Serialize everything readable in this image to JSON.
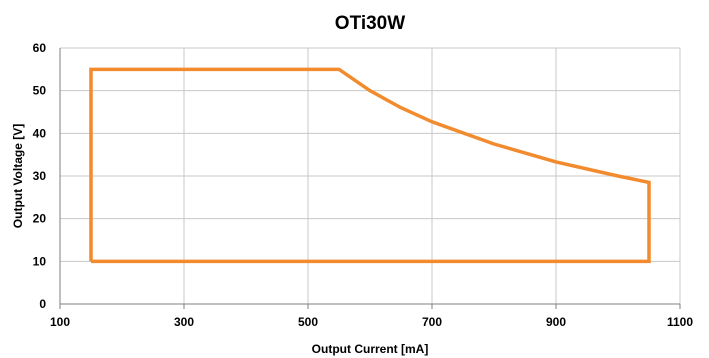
{
  "chart_data": {
    "type": "line",
    "title": "OTi30W",
    "xlabel": "Output Current [mA]",
    "ylabel": "Output Voltage [V]",
    "xlim": [
      100,
      1100
    ],
    "ylim": [
      0,
      60
    ],
    "xticks": [
      100,
      300,
      500,
      700,
      900,
      1100
    ],
    "yticks": [
      0,
      10,
      20,
      30,
      40,
      50,
      60
    ],
    "grid": true,
    "legend": "none",
    "series": [
      {
        "color": "#f28a2e",
        "x": [
          150,
          150,
          550,
          600,
          650,
          700,
          800,
          900,
          1000,
          1050,
          1050,
          150
        ],
        "y": [
          10,
          55,
          55,
          50,
          46,
          42.7,
          37.5,
          33.3,
          30,
          28.5,
          10,
          10
        ]
      }
    ]
  }
}
